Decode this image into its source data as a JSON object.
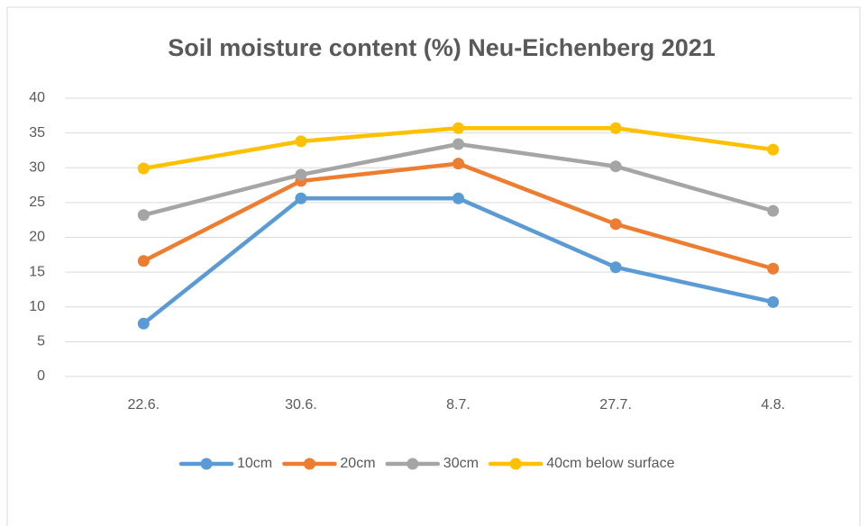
{
  "chart_data": {
    "type": "line",
    "title": "Soil moisture content (%) Neu-Eichenberg 2021",
    "categories": [
      "22.6.",
      "30.6.",
      "8.7.",
      "27.7.",
      "4.8."
    ],
    "series": [
      {
        "name": "10cm",
        "color": "#5b9bd5",
        "values": [
          7.6,
          25.6,
          25.6,
          15.7,
          10.7
        ]
      },
      {
        "name": "20cm",
        "color": "#ed7d31",
        "values": [
          16.6,
          28.1,
          30.6,
          21.9,
          15.5
        ]
      },
      {
        "name": "30cm",
        "color": "#a5a5a5",
        "values": [
          23.2,
          29.0,
          33.4,
          30.2,
          23.8
        ]
      },
      {
        "name": "40cm below surface",
        "color": "#ffc000",
        "values": [
          29.9,
          33.8,
          35.7,
          35.7,
          32.6
        ]
      }
    ],
    "ylim": [
      0,
      40
    ],
    "yticks": [
      0,
      5,
      10,
      15,
      20,
      25,
      30,
      35,
      40
    ],
    "grid": true,
    "legend": "bottom"
  }
}
